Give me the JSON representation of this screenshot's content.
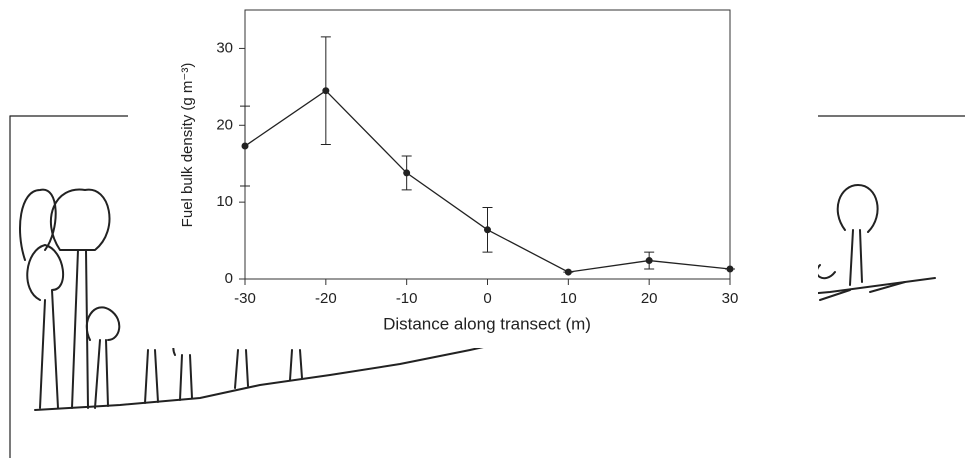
{
  "chart_data": {
    "type": "line",
    "x_label": "Distance along transect (m)",
    "y_label": "Fuel bulk density (g m⁻³)",
    "x": [
      -30,
      -20,
      -10,
      0,
      10,
      20,
      30
    ],
    "series": [
      {
        "color": "#222222",
        "values": [
          17.3,
          24.5,
          13.8,
          6.4,
          0.9,
          2.4,
          1.3
        ],
        "errors": [
          5.2,
          7,
          2.2,
          2.9,
          0,
          1.1,
          0
        ]
      }
    ],
    "xlim": [
      -30,
      30
    ],
    "xticks": [
      -30,
      -20,
      -10,
      0,
      10,
      20,
      30
    ],
    "ylim": [
      0,
      35
    ],
    "yticks": [
      0,
      10,
      20,
      30
    ]
  }
}
